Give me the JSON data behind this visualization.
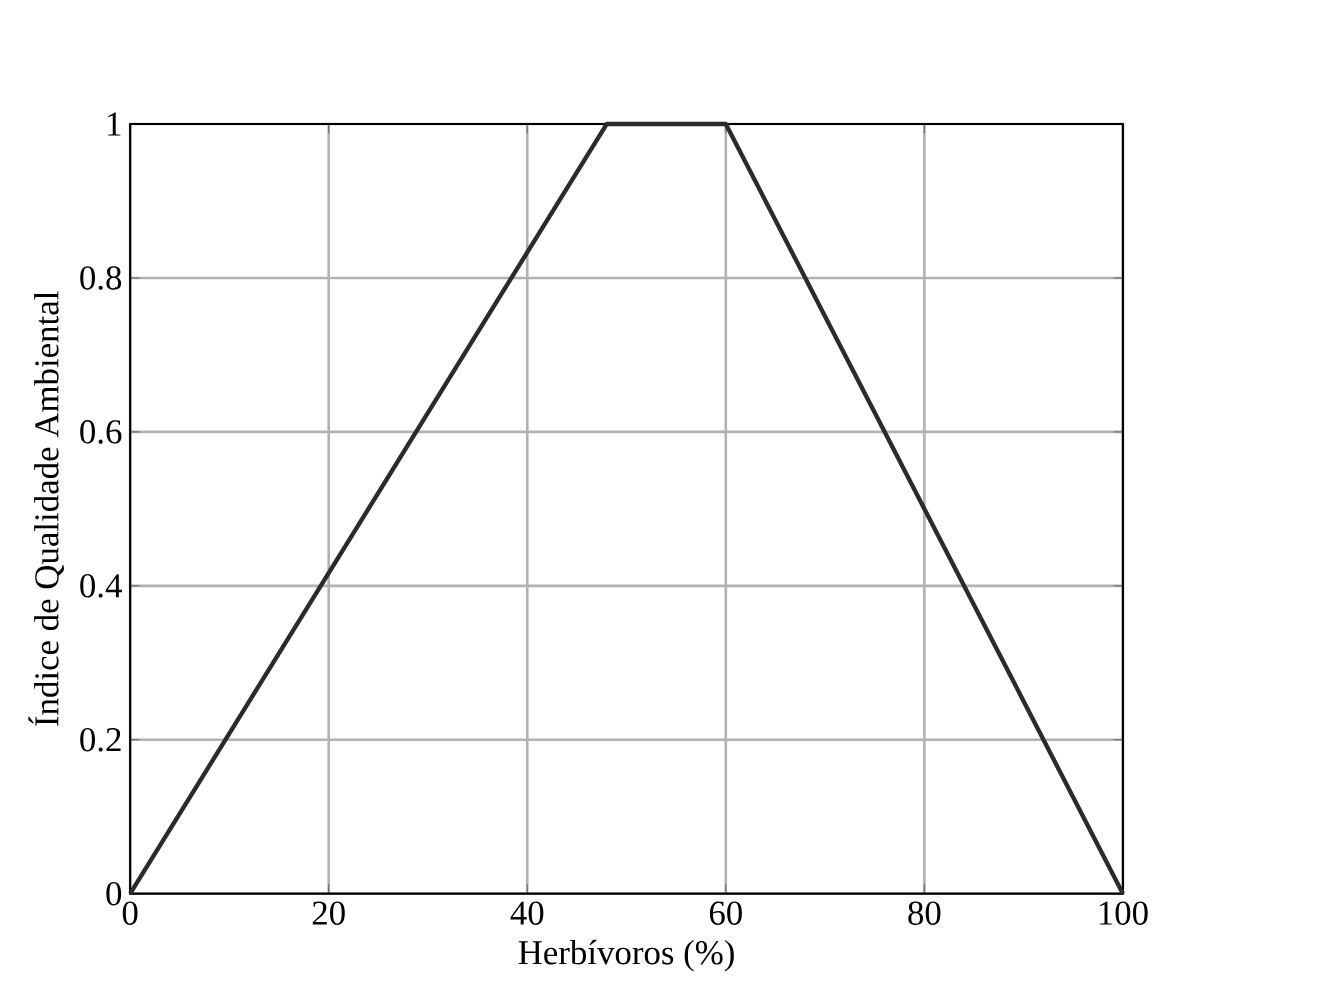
{
  "chart_data": {
    "type": "line",
    "xlabel": "Herbívoros (%)",
    "ylabel": "Índice de Qualidade Ambiental",
    "x": [
      0,
      48,
      60,
      100
    ],
    "values": [
      0,
      1,
      1,
      0
    ],
    "color": "#2b2b2b",
    "xlim": [
      0,
      100
    ],
    "ylim": [
      0,
      1
    ],
    "xticks": [
      0,
      20,
      40,
      60,
      80,
      100
    ],
    "yticks": [
      0,
      0.2,
      0.4,
      0.6,
      0.8,
      1
    ],
    "grid": true,
    "marker": "none",
    "line_style": "solid"
  }
}
